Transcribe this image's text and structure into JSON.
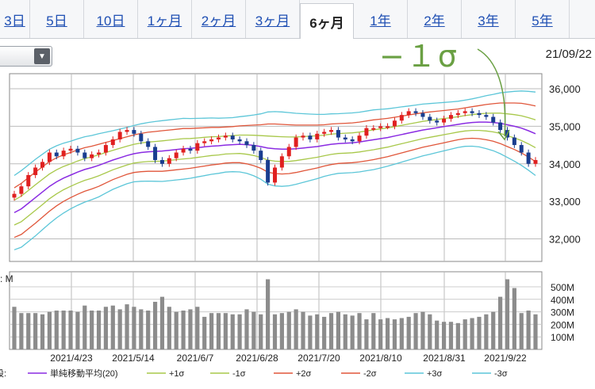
{
  "tabs": [
    "3日",
    "5日",
    "10日",
    "1ヶ月",
    "2ヶ月",
    "3ヶ月",
    "6ヶ月",
    "1年",
    "2年",
    "3年",
    "5年"
  ],
  "active_tab": 6,
  "date_label": "21/09/22",
  "annotation": "−１σ",
  "volume_label": ": M",
  "legend_prefix": "設:",
  "colors": {
    "candle_up": "#e02020",
    "candle_down": "#1a3d8f",
    "sma": "#8a2be2",
    "s1": "#a8c84a",
    "s2": "#e0563a",
    "s3": "#5cc6d8",
    "annotation": "#6aa043",
    "volume": "#8c8c8c"
  },
  "chart_data": {
    "type": "line",
    "x_ticks": [
      "2021/4/23",
      "2021/5/14",
      "2021/6/7",
      "2021/6/28",
      "2021/7/20",
      "2021/8/10",
      "2021/8/31",
      "2021/9/22"
    ],
    "price_ylim": [
      31400,
      36400
    ],
    "price_ticks": [
      "36,000",
      "35,000",
      "34,000",
      "33,000",
      "32,000"
    ],
    "price_tick_values": [
      36000,
      35000,
      34000,
      33000,
      32000
    ],
    "volume_ylim": [
      0,
      620
    ],
    "volume_ticks": [
      "500M",
      "400M",
      "300M",
      "200M",
      "100M"
    ],
    "volume_tick_values": [
      500,
      400,
      300,
      200,
      100
    ],
    "legend": [
      "単純移動平均(20)",
      "+1σ",
      "-1σ",
      "+2σ",
      "-2σ",
      "+3σ",
      "-3σ"
    ],
    "close": [
      33200,
      33400,
      33700,
      33900,
      34050,
      34300,
      34200,
      34350,
      34400,
      34300,
      34150,
      34250,
      34300,
      34500,
      34650,
      34850,
      34900,
      34800,
      34600,
      34450,
      34100,
      34000,
      34150,
      34300,
      34400,
      34350,
      34550,
      34600,
      34650,
      34700,
      34750,
      34650,
      34600,
      34500,
      34350,
      34100,
      33500,
      33900,
      34200,
      34450,
      34700,
      34750,
      34650,
      34800,
      34850,
      34900,
      34700,
      34650,
      34600,
      34750,
      34950,
      34950,
      35000,
      35000,
      35150,
      35300,
      35400,
      35350,
      35250,
      35150,
      35100,
      35200,
      35300,
      35350,
      35400,
      35350,
      35300,
      35250,
      35100,
      34900,
      34700,
      34500,
      34300,
      34000,
      34100
    ],
    "sma": [
      32700,
      32800,
      32950,
      33100,
      33250,
      33400,
      33520,
      33620,
      33700,
      33780,
      33850,
      33900,
      33960,
      34030,
      34100,
      34160,
      34220,
      34270,
      34300,
      34320,
      34330,
      34340,
      34360,
      34380,
      34400,
      34410,
      34430,
      34450,
      34470,
      34480,
      34500,
      34510,
      34520,
      34510,
      34490,
      34460,
      34420,
      34400,
      34390,
      34390,
      34400,
      34420,
      34440,
      34460,
      34490,
      34520,
      34540,
      34550,
      34560,
      34580,
      34610,
      34640,
      34670,
      34700,
      34740,
      34780,
      34820,
      34860,
      34900,
      34930,
      34960,
      34990,
      35020,
      35050,
      35080,
      35100,
      35110,
      35110,
      35100,
      35080,
      35040,
      35000,
      34950,
      34880,
      34800
    ],
    "band_width_1": [
      330,
      340,
      340,
      340,
      335,
      330,
      320,
      310,
      300,
      295,
      290,
      285,
      280,
      270,
      260,
      255,
      250,
      250,
      255,
      260,
      265,
      270,
      270,
      270,
      270,
      265,
      260,
      255,
      250,
      245,
      240,
      240,
      245,
      255,
      270,
      290,
      320,
      330,
      330,
      325,
      315,
      305,
      295,
      285,
      275,
      270,
      265,
      265,
      265,
      265,
      265,
      265,
      260,
      255,
      250,
      245,
      240,
      235,
      230,
      225,
      220,
      215,
      210,
      205,
      205,
      210,
      220,
      235,
      250,
      270,
      290,
      310,
      330,
      350,
      370
    ],
    "volume": [
      340,
      290,
      290,
      290,
      280,
      300,
      310,
      310,
      310,
      300,
      350,
      310,
      310,
      340,
      350,
      320,
      360,
      340,
      320,
      310,
      380,
      420,
      340,
      300,
      310,
      320,
      340,
      260,
      290,
      290,
      290,
      280,
      280,
      320,
      300,
      280,
      560,
      280,
      290,
      300,
      320,
      300,
      270,
      280,
      260,
      290,
      300,
      280,
      270,
      290,
      240,
      290,
      240,
      250,
      240,
      250,
      260,
      290,
      300,
      280,
      230,
      220,
      220,
      210,
      240,
      250,
      260,
      280,
      300,
      420,
      560,
      490,
      290,
      310,
      280
    ]
  }
}
